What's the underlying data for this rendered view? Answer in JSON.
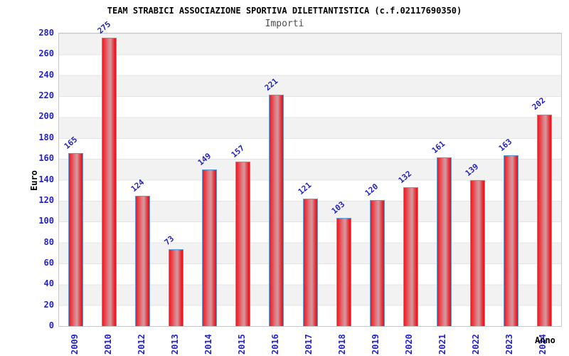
{
  "chart_data": {
    "type": "bar",
    "title": "TEAM STRABICI ASSOCIAZIONE SPORTIVA DILETTANTISTICA (c.f.02117690350)",
    "subtitle": "Importi",
    "xlabel": "Anno",
    "ylabel": "Euro",
    "categories": [
      "2009",
      "2010",
      "2012",
      "2013",
      "2014",
      "2015",
      "2016",
      "2017",
      "2018",
      "2019",
      "2020",
      "2021",
      "2022",
      "2023",
      "2024"
    ],
    "values": [
      165,
      275,
      124,
      73,
      149,
      157,
      221,
      121,
      103,
      120,
      132,
      161,
      139,
      163,
      202
    ],
    "ylim": [
      0,
      280
    ],
    "ytick_step": 20,
    "yticks": [
      0,
      20,
      40,
      60,
      80,
      100,
      120,
      140,
      160,
      180,
      200,
      220,
      240,
      260,
      280
    ],
    "grid": "horizontal-alternating-bands",
    "legend": "none",
    "colors": {
      "bar_fill_main": "#ee1b23",
      "bar_fill_highlight": "#d29aa0",
      "bar_border": "#5e9cd3",
      "axis_text": "#2222cc",
      "value_label_text": "#2525bb",
      "title_text": "#000000",
      "subtitle_text": "#4d4d4d",
      "band_gray": "#f2f2f2",
      "band_white": "#ffffff",
      "plot_border": "#c8c8c8"
    }
  }
}
